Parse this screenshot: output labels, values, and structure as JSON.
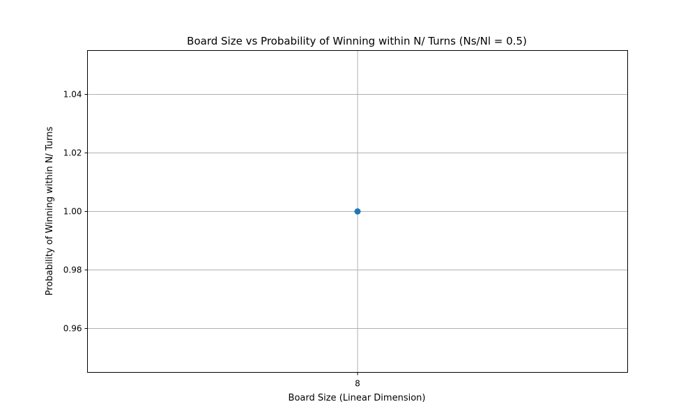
{
  "chart_data": {
    "type": "line",
    "title": "Board Size vs Probability of Winning within N/ Turns (Ns/Nl = 0.5)",
    "xlabel": "Board Size (Linear Dimension)",
    "ylabel": "Probability of Winning within N/ Turns",
    "x": [
      8
    ],
    "xticks": [
      "8"
    ],
    "yticks": [
      0.96,
      0.98,
      1.0,
      1.02,
      1.04
    ],
    "ytick_labels": [
      "0.96",
      "0.98",
      "1.00",
      "1.02",
      "1.04"
    ],
    "ylim": [
      0.945,
      1.055
    ],
    "series": [
      {
        "values": [
          1.0
        ],
        "color": "#1f77b4",
        "marker": "circle"
      }
    ],
    "grid": true
  }
}
